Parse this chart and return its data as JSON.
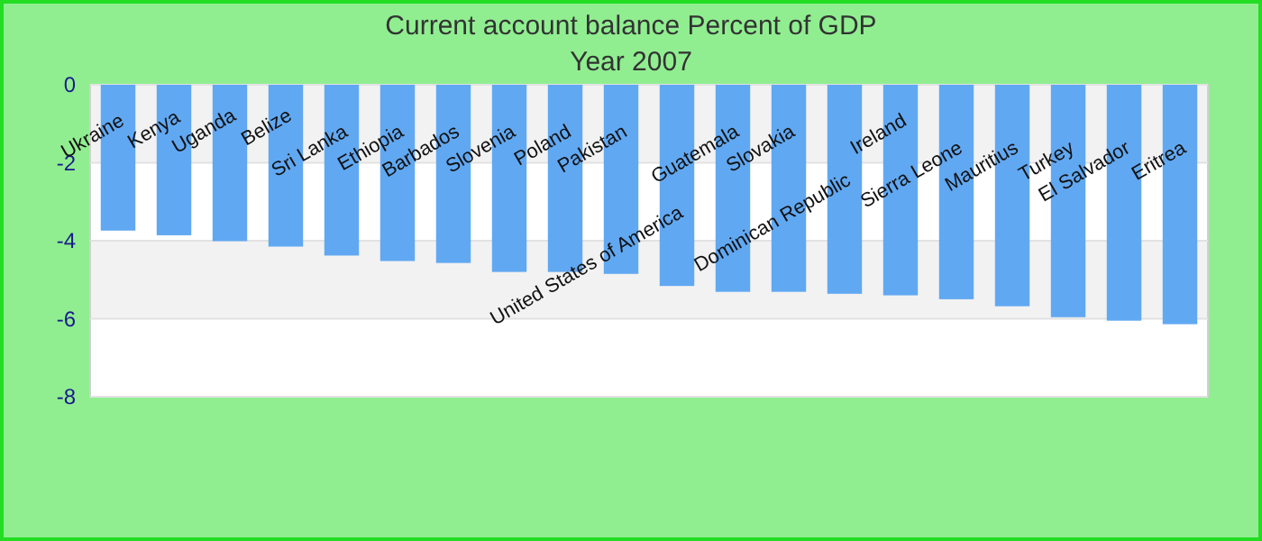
{
  "chart_data": {
    "type": "bar",
    "title": "Current account balance  Percent of GDP",
    "subtitle": "Year 2007",
    "categories": [
      "Ukraine",
      "Kenya",
      "Uganda",
      "Belize",
      "Sri Lanka",
      "Ethiopia",
      "Barbados",
      "Slovenia",
      "Poland",
      "Pakistan",
      "United States of America",
      "Guatemala",
      "Slovakia",
      "Dominican Republic",
      "Ireland",
      "Sierra Leone",
      "Mauritius",
      "Turkey",
      "El Salvador",
      "Eritrea"
    ],
    "values": [
      -3.74,
      -3.86,
      -4.01,
      -4.15,
      -4.38,
      -4.52,
      -4.57,
      -4.8,
      -4.8,
      -4.85,
      -5.16,
      -5.31,
      -5.31,
      -5.36,
      -5.4,
      -5.5,
      -5.68,
      -5.96,
      -6.05,
      -6.14
    ],
    "color": "#61a8f2",
    "ylim": [
      -8,
      0
    ],
    "yticks": [
      0,
      -2,
      -4,
      -6,
      -8
    ],
    "grid": "y"
  }
}
